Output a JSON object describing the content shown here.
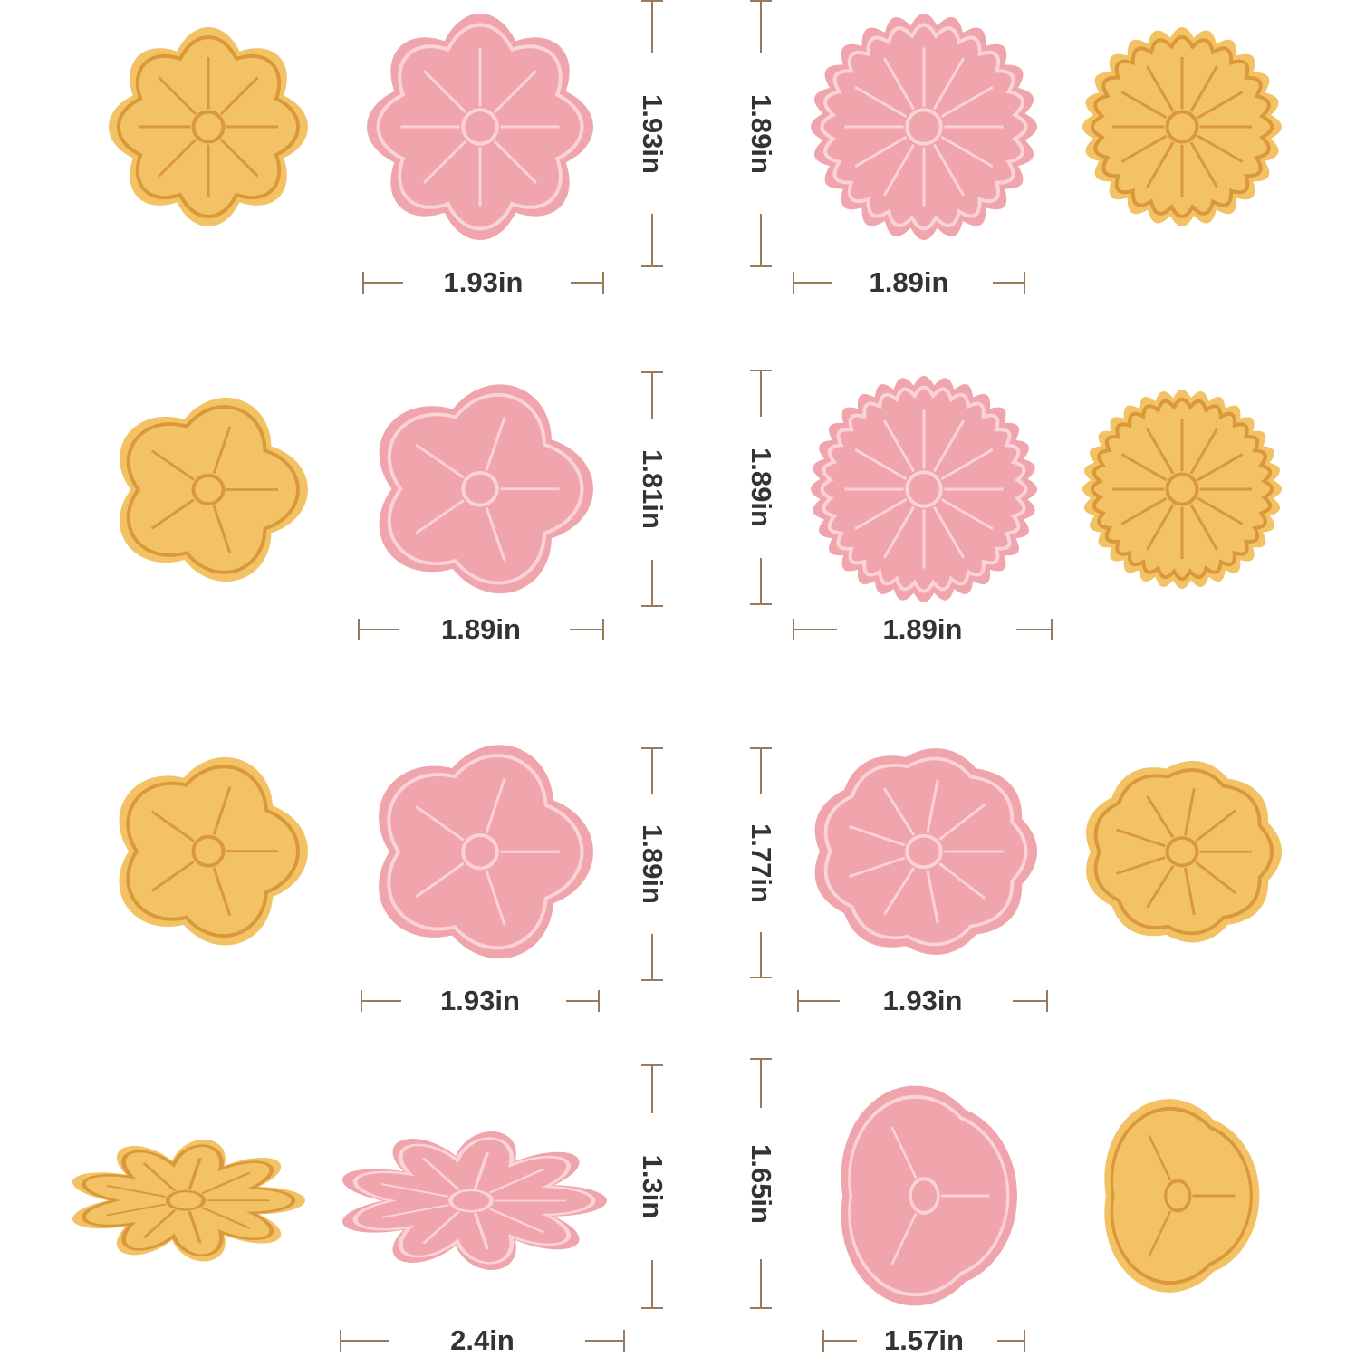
{
  "colors": {
    "cookie": "#f3c265",
    "cookie_line": "#d9983a",
    "cutter": "#f0a5ad",
    "cutter_line": "#fbd3d6",
    "dimension_line": "#9a7a5a",
    "text": "#333333"
  },
  "items": [
    {
      "shape": "cherry-blossom-flower",
      "width": "1.93in",
      "height": "1.93in"
    },
    {
      "shape": "daisy-flower",
      "width": "1.89in",
      "height": "1.89in"
    },
    {
      "shape": "sakura-flower",
      "width": "1.89in",
      "height": "1.81in"
    },
    {
      "shape": "sunflower",
      "width": "1.89in",
      "height": "1.89in"
    },
    {
      "shape": "plum-blossom-flower",
      "width": "1.93in",
      "height": "1.89in"
    },
    {
      "shape": "rose-flower",
      "width": "1.93in",
      "height": "1.77in"
    },
    {
      "shape": "lotus-flower",
      "width": "2.4in",
      "height": "1.3in"
    },
    {
      "shape": "tulip-flower",
      "width": "1.57in",
      "height": "1.65in"
    }
  ]
}
